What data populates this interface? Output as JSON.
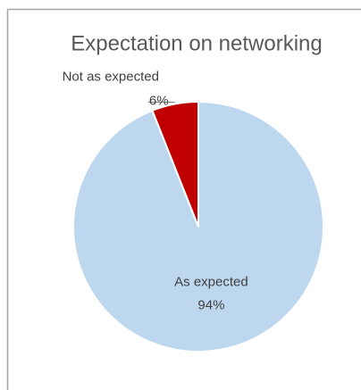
{
  "chart_data": {
    "type": "pie",
    "title": "Expectation on networking",
    "categories": [
      "As expected",
      "Not as expected"
    ],
    "values": [
      94,
      6
    ],
    "value_labels": [
      "94%",
      "6%"
    ],
    "colors": [
      "#bdd7ee",
      "#c00000"
    ]
  }
}
